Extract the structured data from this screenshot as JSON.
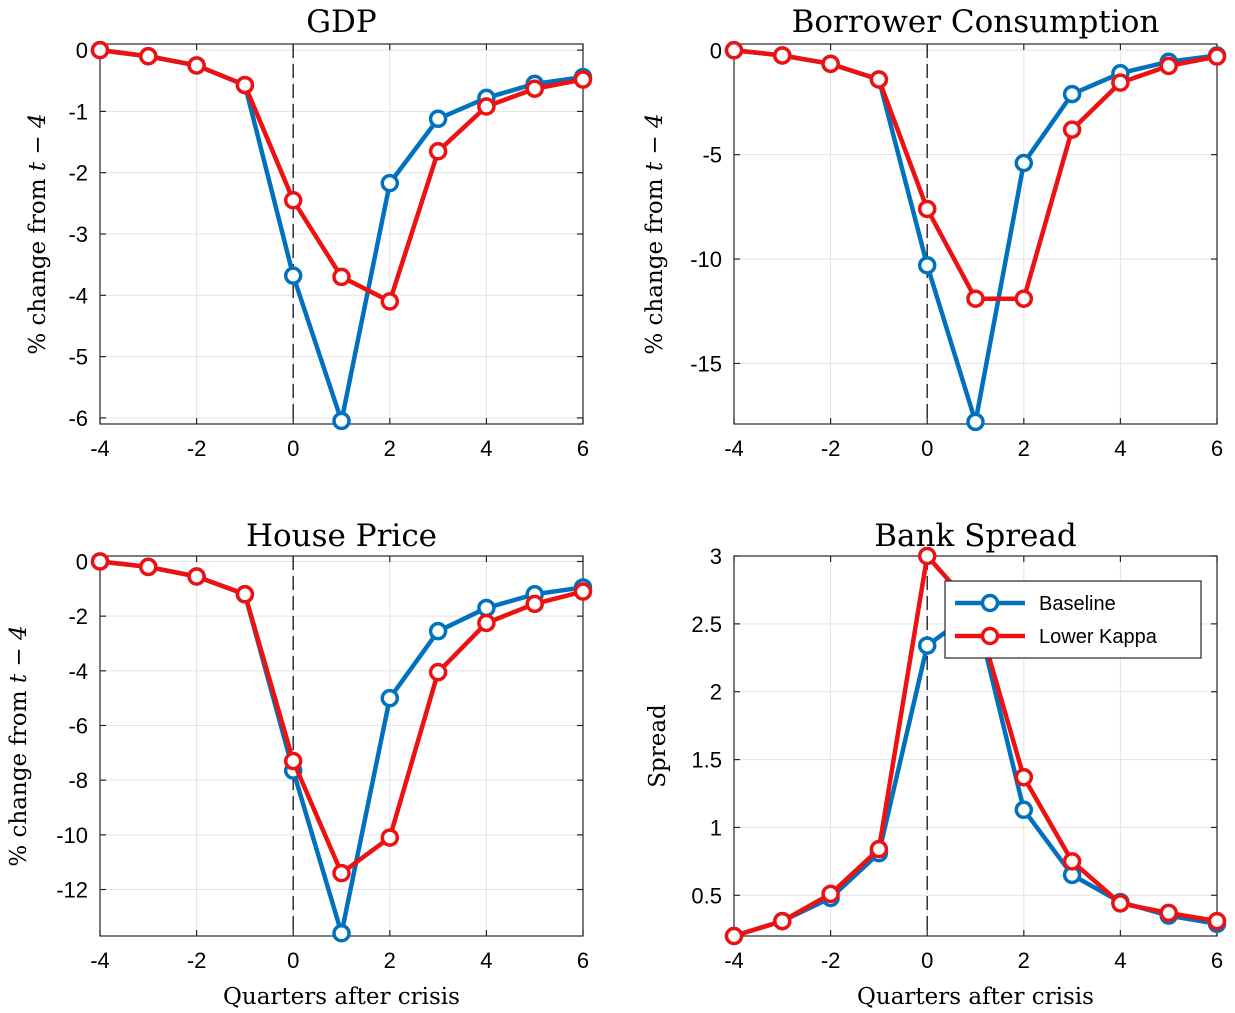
{
  "chart_data": [
    {
      "type": "line",
      "title": "GDP",
      "ylabel_prefix": "% change from ",
      "ylabel_var": "t − 4",
      "xlabel": "",
      "x": [
        -4,
        -3,
        -2,
        -1,
        0,
        1,
        2,
        3,
        4,
        5,
        6
      ],
      "xlim": [
        -4,
        6
      ],
      "ylim": [
        -6.1,
        0.1
      ],
      "xticks": [
        -4,
        -2,
        0,
        2,
        4,
        6
      ],
      "yticks": [
        0,
        -1,
        -2,
        -3,
        -4,
        -5,
        -6
      ],
      "grid": true,
      "vline_x": 0,
      "series": [
        {
          "name": "Baseline",
          "color": "#0072BD",
          "values": [
            0,
            -0.1,
            -0.25,
            -0.57,
            -3.68,
            -6.05,
            -2.17,
            -1.12,
            -0.78,
            -0.55,
            -0.44
          ]
        },
        {
          "name": "Lower Kappa",
          "color": "#EE1111",
          "values": [
            0,
            -0.1,
            -0.25,
            -0.57,
            -2.45,
            -3.7,
            -4.1,
            -1.65,
            -0.92,
            -0.63,
            -0.48
          ]
        }
      ]
    },
    {
      "type": "line",
      "title": "Borrower Consumption",
      "ylabel_prefix": "% change from ",
      "ylabel_var": "t − 4",
      "xlabel": "",
      "x": [
        -4,
        -3,
        -2,
        -1,
        0,
        1,
        2,
        3,
        4,
        5,
        6
      ],
      "xlim": [
        -4,
        6
      ],
      "ylim": [
        -17.9,
        0.3
      ],
      "xticks": [
        -4,
        -2,
        0,
        2,
        4,
        6
      ],
      "yticks": [
        0,
        -5,
        -10,
        -15
      ],
      "grid": true,
      "vline_x": 0,
      "series": [
        {
          "name": "Baseline",
          "color": "#0072BD",
          "values": [
            0,
            -0.25,
            -0.65,
            -1.4,
            -10.3,
            -17.8,
            -5.4,
            -2.1,
            -1.1,
            -0.55,
            -0.25
          ]
        },
        {
          "name": "Lower Kappa",
          "color": "#EE1111",
          "values": [
            0,
            -0.25,
            -0.65,
            -1.4,
            -7.6,
            -11.9,
            -11.9,
            -3.8,
            -1.55,
            -0.75,
            -0.3
          ]
        }
      ]
    },
    {
      "type": "line",
      "title": "House Price",
      "ylabel_prefix": "% change from ",
      "ylabel_var": "t − 4",
      "xlabel": "Quarters after crisis",
      "x": [
        -4,
        -3,
        -2,
        -1,
        0,
        1,
        2,
        3,
        4,
        5,
        6
      ],
      "xlim": [
        -4,
        6
      ],
      "ylim": [
        -13.7,
        0.2
      ],
      "xticks": [
        -4,
        -2,
        0,
        2,
        4,
        6
      ],
      "yticks": [
        0,
        -2,
        -4,
        -6,
        -8,
        -10,
        -12
      ],
      "grid": true,
      "vline_x": 0,
      "series": [
        {
          "name": "Baseline",
          "color": "#0072BD",
          "values": [
            0,
            -0.2,
            -0.55,
            -1.2,
            -7.65,
            -13.6,
            -5.0,
            -2.55,
            -1.7,
            -1.2,
            -0.95
          ]
        },
        {
          "name": "Lower Kappa",
          "color": "#EE1111",
          "values": [
            0,
            -0.2,
            -0.55,
            -1.2,
            -7.3,
            -11.4,
            -10.1,
            -4.05,
            -2.25,
            -1.55,
            -1.1
          ]
        }
      ]
    },
    {
      "type": "line",
      "title": "Bank Spread",
      "ylabel": "Spread",
      "xlabel": "Quarters after crisis",
      "x": [
        -4,
        -3,
        -2,
        -1,
        0,
        1,
        2,
        3,
        4,
        5,
        6
      ],
      "xlim": [
        -4,
        6
      ],
      "ylim": [
        0.2,
        3.0
      ],
      "xticks": [
        -4,
        -2,
        0,
        2,
        4,
        6
      ],
      "yticks": [
        3,
        2.5,
        2,
        1.5,
        1,
        0.5
      ],
      "grid": true,
      "vline_x": 0,
      "legend": {
        "placement": "top-right",
        "entries": [
          "Baseline",
          "Lower Kappa"
        ]
      },
      "series": [
        {
          "name": "Baseline",
          "color": "#0072BD",
          "values": [
            0.2,
            0.31,
            0.48,
            0.81,
            2.34,
            2.6,
            1.13,
            0.65,
            0.45,
            0.35,
            0.29
          ]
        },
        {
          "name": "Lower Kappa",
          "color": "#EE1111",
          "values": [
            0.2,
            0.31,
            0.51,
            0.84,
            3.0,
            2.6,
            1.37,
            0.75,
            0.44,
            0.37,
            0.31
          ]
        }
      ]
    }
  ]
}
